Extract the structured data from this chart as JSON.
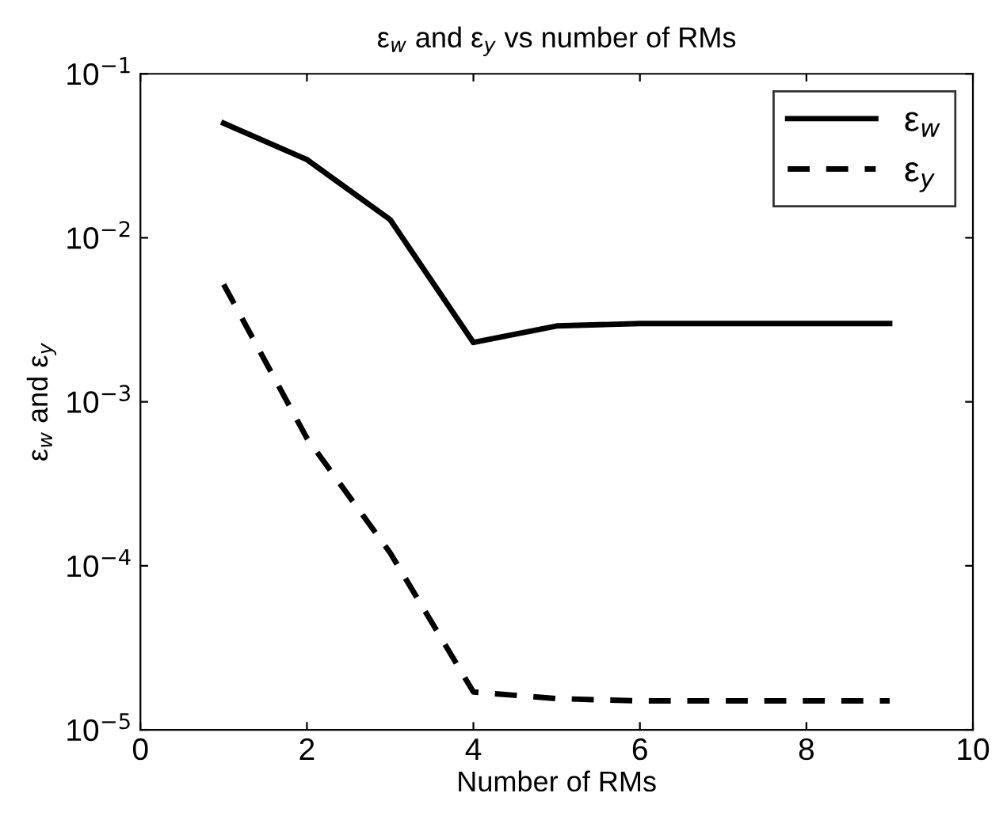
{
  "chart_data": {
    "type": "line",
    "title": "ε$_{w}$ and ε$_{y}$ vs number of RMs",
    "xlabel": "Number of RMs",
    "ylabel": "ε$_{w}$ and ε$_{y}$",
    "x": [
      1,
      2,
      3,
      4,
      5,
      6,
      7,
      8,
      9
    ],
    "series": [
      {
        "name": "ε$_{w}$",
        "color": "#000000",
        "line_style": "solid",
        "values": [
          0.05,
          0.03,
          0.0129,
          0.0023,
          0.0029,
          0.003,
          0.003,
          0.003,
          0.003
        ]
      },
      {
        "name": "ε$_{y}$",
        "color": "#000000",
        "line_style": "dashed",
        "values": [
          0.0052,
          0.0006,
          0.00012,
          1.7e-05,
          1.55e-05,
          1.5e-05,
          1.5e-05,
          1.5e-05,
          1.5e-05
        ]
      }
    ],
    "log": "y",
    "xlim": [
      0,
      10
    ],
    "ylim": [
      1e-05,
      0.1
    ],
    "xticks": [
      0,
      2,
      4,
      6,
      8,
      10
    ],
    "yticks": [
      {
        "value": 1e-05,
        "label": "10$^{−5}$"
      },
      {
        "value": 0.0001,
        "label": "10$^{−4}$"
      },
      {
        "value": 0.001,
        "label": "10$^{−3}$"
      },
      {
        "value": 0.01,
        "label": "10$^{−2}$"
      },
      {
        "value": 0.1,
        "label": "10$^{−1}$"
      }
    ],
    "grid": false,
    "legend": "top right",
    "marker": "none"
  }
}
